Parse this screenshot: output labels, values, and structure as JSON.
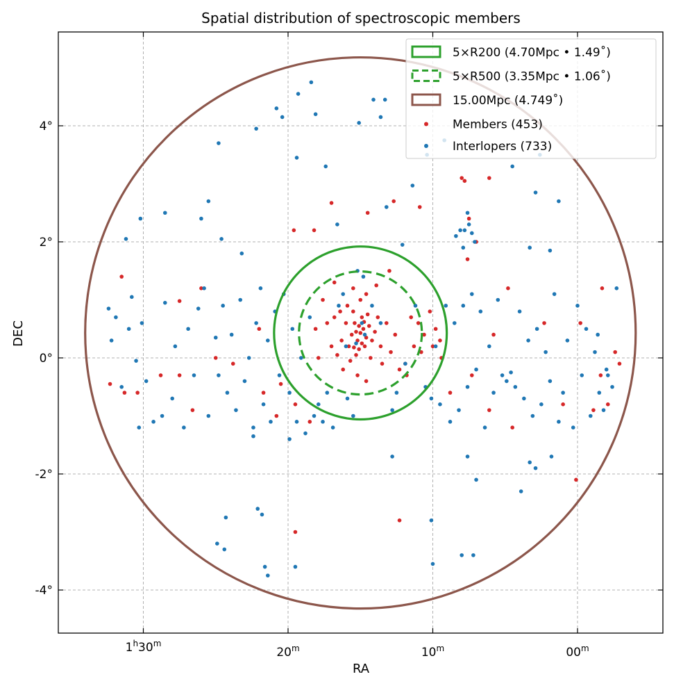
{
  "chart_data": {
    "type": "scatter",
    "title": "Spatial distribution of spectroscopic members",
    "xlabel": "RA",
    "ylabel": "DEC",
    "x_units": "RA minutes after 1h00m (decreasing to the right)",
    "xlim": [
      35.9,
      -5.9
    ],
    "ylim": [
      -4.74,
      5.62
    ],
    "grid": true,
    "legend_position": "top-right",
    "xticks": [
      {
        "value": 30,
        "parts": [
          "1",
          "h",
          "30",
          "m"
        ]
      },
      {
        "value": 20,
        "parts": [
          "",
          "",
          "20",
          "m"
        ]
      },
      {
        "value": 10,
        "parts": [
          "",
          "",
          "10",
          "m"
        ]
      },
      {
        "value": 0,
        "parts": [
          "",
          "",
          "00",
          "m"
        ]
      }
    ],
    "yticks": [
      {
        "value": 4,
        "label": "4°"
      },
      {
        "value": 2,
        "label": "2°"
      },
      {
        "value": 0,
        "label": "0°"
      },
      {
        "value": -2,
        "label": "-2°"
      },
      {
        "value": -4,
        "label": "-4°"
      }
    ],
    "center": {
      "ra": 15.0,
      "dec": 0.43
    },
    "circles": [
      {
        "name": "5×R200 (4.70Mpc • 1.49˚)",
        "radius_deg": 1.49,
        "color": "#2ca02c",
        "dashed": false
      },
      {
        "name": "5×R500 (3.35Mpc • 1.06˚)",
        "radius_deg": 1.06,
        "color": "#2ca02c",
        "dashed": true
      },
      {
        "name": "15.00Mpc (4.749˚)",
        "radius_deg": 4.749,
        "color": "#8c564b",
        "dashed": false
      }
    ],
    "series": [
      {
        "name": "Members (453)",
        "color": "#d62728",
        "points": [
          [
            15.0,
            0.43
          ],
          [
            15.2,
            0.3
          ],
          [
            14.8,
            0.5
          ],
          [
            15.4,
            0.6
          ],
          [
            14.6,
            0.35
          ],
          [
            15.1,
            0.15
          ],
          [
            14.9,
            0.7
          ],
          [
            15.6,
            0.4
          ],
          [
            14.4,
            0.55
          ],
          [
            15.3,
            0.05
          ],
          [
            14.7,
            0.2
          ],
          [
            15.5,
            0.8
          ],
          [
            14.5,
            0.75
          ],
          [
            15.8,
            0.2
          ],
          [
            14.2,
            0.3
          ],
          [
            16.0,
            0.6
          ],
          [
            14.0,
            0.45
          ],
          [
            15.7,
            -0.05
          ],
          [
            14.3,
            0.0
          ],
          [
            15.9,
            0.9
          ],
          [
            13.8,
            0.7
          ],
          [
            16.3,
            0.3
          ],
          [
            13.6,
            0.2
          ],
          [
            16.4,
            0.8
          ],
          [
            15.0,
            1.0
          ],
          [
            14.6,
            1.1
          ],
          [
            15.5,
            1.2
          ],
          [
            13.9,
            1.25
          ],
          [
            16.6,
            0.05
          ],
          [
            13.2,
            0.6
          ],
          [
            16.8,
            0.7
          ],
          [
            12.9,
            0.1
          ],
          [
            17.0,
            0.2
          ],
          [
            15.2,
            -0.3
          ],
          [
            14.6,
            -0.4
          ],
          [
            16.2,
            -0.2
          ],
          [
            13.5,
            -0.1
          ],
          [
            17.3,
            0.6
          ],
          [
            12.6,
            0.4
          ],
          [
            17.6,
            1.0
          ],
          [
            16.8,
            1.3
          ],
          [
            18.1,
            0.5
          ],
          [
            17.9,
            0.0
          ],
          [
            13.0,
            1.5
          ],
          [
            15.1,
            0.55
          ],
          [
            14.9,
            0.25
          ],
          [
            15.3,
            0.45
          ],
          [
            14.75,
            0.62
          ],
          [
            15.45,
            0.18
          ],
          [
            11.0,
            0.6
          ],
          [
            10.6,
            0.4
          ],
          [
            11.3,
            0.2
          ],
          [
            10.2,
            0.8
          ],
          [
            10.8,
            0.1
          ],
          [
            9.8,
            0.5
          ],
          [
            11.5,
            0.7
          ],
          [
            10.0,
            0.2
          ],
          [
            9.5,
            0.3
          ],
          [
            11.8,
            -0.3
          ],
          [
            11.9,
            -0.1
          ],
          [
            12.3,
            -0.2
          ],
          [
            18.5,
            -1.1
          ],
          [
            19.5,
            -0.8
          ],
          [
            19.6,
            2.2
          ],
          [
            18.2,
            2.2
          ],
          [
            17.0,
            2.67
          ],
          [
            14.5,
            2.5
          ],
          [
            12.7,
            2.7
          ],
          [
            10.9,
            2.6
          ],
          [
            8.0,
            3.1
          ],
          [
            6.1,
            3.1
          ],
          [
            7.8,
            3.05
          ],
          [
            7.5,
            2.4
          ],
          [
            7.0,
            2.0
          ],
          [
            7.6,
            1.7
          ],
          [
            4.8,
            1.2
          ],
          [
            2.3,
            0.6
          ],
          [
            -0.2,
            0.6
          ],
          [
            -1.7,
            1.2
          ],
          [
            -2.6,
            0.1
          ],
          [
            -2.9,
            -0.1
          ],
          [
            -2.1,
            -0.8
          ],
          [
            -1.1,
            -0.9
          ],
          [
            0.1,
            -2.1
          ],
          [
            4.5,
            -1.2
          ],
          [
            6.1,
            -0.9
          ],
          [
            8.8,
            -0.6
          ],
          [
            12.3,
            -2.8
          ],
          [
            19.5,
            -3.0
          ],
          [
            26.6,
            -0.9
          ],
          [
            27.5,
            0.98
          ],
          [
            30.4,
            -0.6
          ],
          [
            31.5,
            1.4
          ],
          [
            32.3,
            -0.45
          ],
          [
            31.3,
            -0.6
          ],
          [
            28.8,
            -0.3
          ],
          [
            26.0,
            1.2
          ],
          [
            23.8,
            -0.1
          ],
          [
            22.0,
            0.5
          ],
          [
            20.5,
            -0.45
          ],
          [
            20.8,
            -1.0
          ],
          [
            21.7,
            -0.6
          ],
          [
            25.0,
            0.0
          ],
          [
            27.5,
            -0.3
          ],
          [
            1.0,
            -0.8
          ],
          [
            -1.6,
            -0.3
          ],
          [
            7.3,
            -0.3
          ],
          [
            9.4,
            0.0
          ],
          [
            5.8,
            0.4
          ]
        ]
      },
      {
        "name": "Interlopers (733)",
        "color": "#1f77b4",
        "points": [
          [
            32.4,
            0.85
          ],
          [
            32.2,
            0.3
          ],
          [
            31.9,
            0.7
          ],
          [
            31.5,
            -0.5
          ],
          [
            31.0,
            0.5
          ],
          [
            30.8,
            1.05
          ],
          [
            30.5,
            -0.05
          ],
          [
            30.3,
            -1.2
          ],
          [
            29.8,
            -0.4
          ],
          [
            30.1,
            0.6
          ],
          [
            29.3,
            -1.1
          ],
          [
            28.7,
            -1.0
          ],
          [
            28.5,
            0.95
          ],
          [
            28.0,
            -0.7
          ],
          [
            27.8,
            0.2
          ],
          [
            27.2,
            -1.2
          ],
          [
            26.9,
            0.5
          ],
          [
            26.5,
            -0.3
          ],
          [
            26.2,
            0.85
          ],
          [
            25.8,
            1.2
          ],
          [
            25.5,
            -1.0
          ],
          [
            25.0,
            0.35
          ],
          [
            24.8,
            -0.3
          ],
          [
            24.5,
            0.9
          ],
          [
            24.2,
            -0.6
          ],
          [
            23.9,
            0.4
          ],
          [
            23.6,
            -0.9
          ],
          [
            23.3,
            1.0
          ],
          [
            23.0,
            -0.4
          ],
          [
            22.7,
            0.0
          ],
          [
            22.4,
            -1.2
          ],
          [
            22.2,
            0.6
          ],
          [
            21.9,
            1.2
          ],
          [
            21.7,
            -0.8
          ],
          [
            21.4,
            0.3
          ],
          [
            21.2,
            -1.1
          ],
          [
            20.9,
            0.8
          ],
          [
            20.6,
            -0.3
          ],
          [
            20.3,
            1.1
          ],
          [
            19.9,
            -0.6
          ],
          [
            19.7,
            0.5
          ],
          [
            19.4,
            -1.1
          ],
          [
            19.1,
            0.0
          ],
          [
            18.8,
            -1.3
          ],
          [
            18.5,
            0.7
          ],
          [
            18.2,
            -1.0
          ],
          [
            17.9,
            -0.8
          ],
          [
            17.6,
            -1.1
          ],
          [
            17.3,
            -0.6
          ],
          [
            16.9,
            -1.2
          ],
          [
            16.5,
            0.9
          ],
          [
            16.2,
            1.1
          ],
          [
            15.9,
            -0.7
          ],
          [
            15.5,
            -1.0
          ],
          [
            15.2,
            1.5
          ],
          [
            14.8,
            1.4
          ],
          [
            14.9,
            0.6
          ],
          [
            15.3,
            0.25
          ],
          [
            14.7,
            0.4
          ],
          [
            16.0,
            0.2
          ],
          [
            14.2,
            0.9
          ],
          [
            13.6,
            0.6
          ],
          [
            12.5,
            -0.6
          ],
          [
            12.8,
            -0.9
          ],
          [
            11.9,
            -0.1
          ],
          [
            11.2,
            0.9
          ],
          [
            10.5,
            -0.5
          ],
          [
            10.1,
            -0.7
          ],
          [
            9.8,
            0.2
          ],
          [
            9.5,
            -0.8
          ],
          [
            9.1,
            0.9
          ],
          [
            8.8,
            -1.1
          ],
          [
            8.5,
            0.6
          ],
          [
            8.2,
            -0.9
          ],
          [
            7.9,
            0.9
          ],
          [
            7.6,
            -0.5
          ],
          [
            7.3,
            1.1
          ],
          [
            7.0,
            -0.2
          ],
          [
            6.7,
            0.8
          ],
          [
            6.4,
            -1.2
          ],
          [
            6.1,
            0.2
          ],
          [
            5.8,
            -0.6
          ],
          [
            5.5,
            1.0
          ],
          [
            5.2,
            -0.3
          ],
          [
            4.9,
            -0.4
          ],
          [
            4.6,
            -0.25
          ],
          [
            4.3,
            -0.5
          ],
          [
            4.0,
            0.8
          ],
          [
            3.7,
            -0.7
          ],
          [
            3.4,
            0.3
          ],
          [
            3.1,
            -1.0
          ],
          [
            2.8,
            0.5
          ],
          [
            2.5,
            -0.8
          ],
          [
            2.2,
            0.1
          ],
          [
            1.9,
            -0.4
          ],
          [
            1.6,
            1.1
          ],
          [
            1.3,
            -1.1
          ],
          [
            1.0,
            -0.6
          ],
          [
            0.7,
            0.3
          ],
          [
            0.3,
            -1.2
          ],
          [
            0.0,
            0.9
          ],
          [
            -0.3,
            -0.3
          ],
          [
            -0.6,
            0.5
          ],
          [
            -0.9,
            -1.0
          ],
          [
            -1.2,
            0.1
          ],
          [
            -1.5,
            -0.6
          ],
          [
            -1.8,
            -0.9
          ],
          [
            -2.1,
            -0.3
          ],
          [
            -2.4,
            -0.5
          ],
          [
            -2.7,
            1.2
          ],
          [
            -2.0,
            -0.2
          ],
          [
            -1.4,
            0.4
          ],
          [
            7.8,
            2.2
          ],
          [
            7.5,
            2.3
          ],
          [
            7.3,
            2.15
          ],
          [
            7.6,
            2.5
          ],
          [
            8.1,
            2.2
          ],
          [
            7.1,
            2.0
          ],
          [
            7.9,
            1.9
          ],
          [
            8.4,
            2.1
          ],
          [
            19.3,
            4.55
          ],
          [
            18.4,
            4.75
          ],
          [
            18.1,
            4.2
          ],
          [
            17.4,
            3.3
          ],
          [
            20.8,
            4.3
          ],
          [
            20.4,
            4.15
          ],
          [
            22.2,
            3.95
          ],
          [
            24.8,
            3.7
          ],
          [
            14.1,
            4.45
          ],
          [
            13.3,
            4.45
          ],
          [
            13.6,
            4.15
          ],
          [
            15.1,
            4.05
          ],
          [
            10.4,
            3.5
          ],
          [
            9.2,
            3.75
          ],
          [
            4.5,
            3.3
          ],
          [
            2.6,
            3.5
          ],
          [
            2.9,
            2.85
          ],
          [
            1.3,
            2.7
          ],
          [
            19.4,
            3.45
          ],
          [
            25.5,
            2.7
          ],
          [
            26.0,
            2.4
          ],
          [
            28.5,
            2.5
          ],
          [
            30.2,
            2.4
          ],
          [
            31.2,
            2.05
          ],
          [
            23.2,
            1.8
          ],
          [
            24.6,
            2.05
          ],
          [
            16.6,
            2.3
          ],
          [
            13.2,
            2.6
          ],
          [
            11.4,
            2.97
          ],
          [
            3.3,
            1.9
          ],
          [
            1.9,
            1.85
          ],
          [
            12.1,
            1.95
          ],
          [
            22.1,
            -2.6
          ],
          [
            21.8,
            -2.7
          ],
          [
            24.3,
            -2.75
          ],
          [
            24.9,
            -3.2
          ],
          [
            24.4,
            -3.3
          ],
          [
            21.6,
            -3.6
          ],
          [
            21.4,
            -3.75
          ],
          [
            19.5,
            -3.6
          ],
          [
            10.1,
            -2.8
          ],
          [
            10.0,
            -3.55
          ],
          [
            8.0,
            -3.4
          ],
          [
            7.2,
            -3.4
          ],
          [
            7.0,
            -2.1
          ],
          [
            3.9,
            -2.3
          ],
          [
            3.3,
            -1.8
          ],
          [
            2.9,
            -1.9
          ],
          [
            1.8,
            -1.7
          ],
          [
            7.6,
            -1.7
          ],
          [
            12.8,
            -1.7
          ],
          [
            19.9,
            -1.4
          ],
          [
            22.4,
            -1.35
          ]
        ]
      }
    ]
  }
}
